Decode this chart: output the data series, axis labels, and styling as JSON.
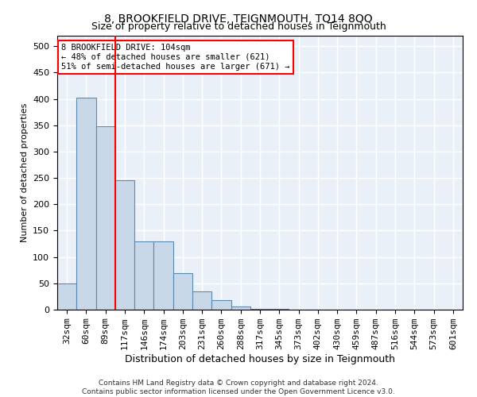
{
  "title": "8, BROOKFIELD DRIVE, TEIGNMOUTH, TQ14 8QQ",
  "subtitle": "Size of property relative to detached houses in Teignmouth",
  "xlabel": "Distribution of detached houses by size in Teignmouth",
  "ylabel": "Number of detached properties",
  "bar_color": "#c8d8e8",
  "bar_edge_color": "#5a8ab0",
  "bg_color": "#eaf0f8",
  "grid_color": "white",
  "categories": [
    "32sqm",
    "60sqm",
    "89sqm",
    "117sqm",
    "146sqm",
    "174sqm",
    "203sqm",
    "231sqm",
    "260sqm",
    "288sqm",
    "317sqm",
    "345sqm",
    "373sqm",
    "402sqm",
    "430sqm",
    "459sqm",
    "487sqm",
    "516sqm",
    "544sqm",
    "573sqm",
    "601sqm"
  ],
  "values": [
    50,
    403,
    348,
    246,
    130,
    130,
    70,
    35,
    18,
    6,
    1,
    1,
    0,
    0,
    0,
    0,
    0,
    0,
    0,
    0,
    0
  ],
  "vline_x": 2.5,
  "vline_color": "red",
  "annotation_line1": "8 BROOKFIELD DRIVE: 104sqm",
  "annotation_line2": "← 48% of detached houses are smaller (621)",
  "annotation_line3": "51% of semi-detached houses are larger (671) →",
  "annotation_box_color": "white",
  "annotation_box_edge_color": "red",
  "ylim": [
    0,
    520
  ],
  "yticks": [
    0,
    50,
    100,
    150,
    200,
    250,
    300,
    350,
    400,
    450,
    500
  ],
  "footer1": "Contains HM Land Registry data © Crown copyright and database right 2024.",
  "footer2": "Contains public sector information licensed under the Open Government Licence v3.0."
}
